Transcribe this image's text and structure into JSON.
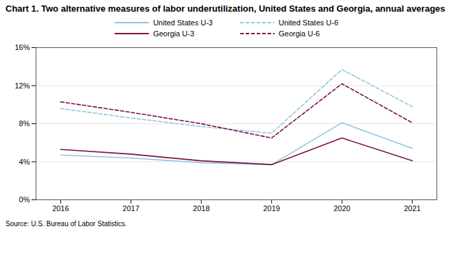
{
  "chart_data": {
    "type": "line",
    "title": "Chart 1. Two alternative measures of labor underutilization, United States and Georgia, annual averages",
    "source": "Source: U.S. Bureau of Labor Statistics.",
    "x": [
      2016,
      2017,
      2018,
      2019,
      2020,
      2021
    ],
    "series": [
      {
        "name": "United States U-3",
        "color": "#92c5de",
        "line_style": "solid",
        "values": [
          4.7,
          4.4,
          3.9,
          3.7,
          8.1,
          5.4
        ]
      },
      {
        "name": "United States U-6",
        "color": "#92c5de",
        "line_style": "dashed",
        "values": [
          9.6,
          8.6,
          7.7,
          7.0,
          13.7,
          9.8
        ]
      },
      {
        "name": "Georgia U-3",
        "color": "#7b1040",
        "line_style": "solid",
        "values": [
          5.3,
          4.8,
          4.1,
          3.7,
          6.5,
          4.1
        ]
      },
      {
        "name": "Georgia U-6",
        "color": "#7b1040",
        "line_style": "dashed",
        "values": [
          10.3,
          9.2,
          8.0,
          6.5,
          12.2,
          8.1
        ]
      }
    ],
    "xlim": [
      2015.65,
      2021.35
    ],
    "xticks": [
      2016,
      2017,
      2018,
      2019,
      2020,
      2021
    ],
    "ylim": [
      0,
      16
    ],
    "yticks": [
      {
        "value": 0,
        "label": "0%"
      },
      {
        "value": 4,
        "label": "4%"
      },
      {
        "value": 8,
        "label": "8%"
      },
      {
        "value": 12,
        "label": "12%"
      },
      {
        "value": 16,
        "label": "16%"
      }
    ],
    "grid": true,
    "legend": "top"
  }
}
